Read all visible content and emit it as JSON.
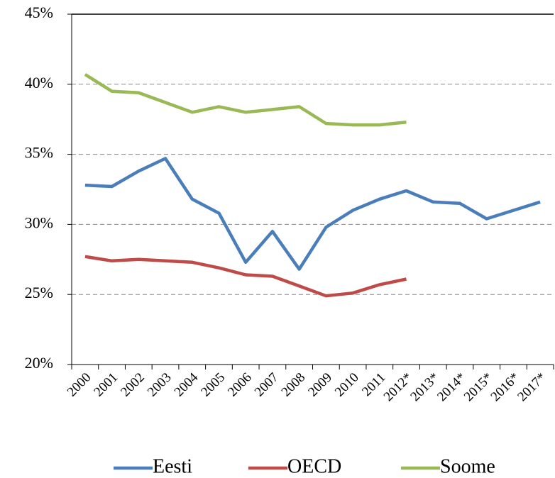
{
  "chart_data": {
    "type": "line",
    "categories": [
      "2000",
      "2001",
      "2002",
      "2003",
      "2004",
      "2005",
      "2006",
      "2007",
      "2008",
      "2009",
      "2010",
      "2011",
      "2012*",
      "2013*",
      "2014*",
      "2015*",
      "2016*",
      "2017*"
    ],
    "series": [
      {
        "name": "Eesti",
        "color": "#4a7ebb",
        "values": [
          32.8,
          32.7,
          33.8,
          34.7,
          31.8,
          30.8,
          27.3,
          29.5,
          26.8,
          29.8,
          31.0,
          31.8,
          32.4,
          31.6,
          31.5,
          30.4,
          31.0,
          31.6
        ]
      },
      {
        "name": "OECD",
        "color": "#be4b48",
        "values": [
          27.7,
          27.4,
          27.5,
          27.4,
          27.3,
          26.9,
          26.4,
          26.3,
          25.6,
          24.9,
          25.1,
          25.7,
          26.1,
          null,
          null,
          null,
          null,
          null
        ]
      },
      {
        "name": "Soome",
        "color": "#98b954",
        "values": [
          40.7,
          39.5,
          39.4,
          38.7,
          38.0,
          38.4,
          38.0,
          38.2,
          38.4,
          37.2,
          37.1,
          37.1,
          37.3,
          null,
          null,
          null,
          null,
          null
        ]
      }
    ],
    "ylim": [
      20,
      45
    ],
    "yticks": [
      {
        "value": 20,
        "label": "20%"
      },
      {
        "value": 25,
        "label": "25%"
      },
      {
        "value": 30,
        "label": "30%"
      },
      {
        "value": 35,
        "label": "35%"
      },
      {
        "value": 40,
        "label": "40%"
      },
      {
        "value": 45,
        "label": "45%"
      }
    ],
    "grid": true,
    "legend": "bottom"
  }
}
